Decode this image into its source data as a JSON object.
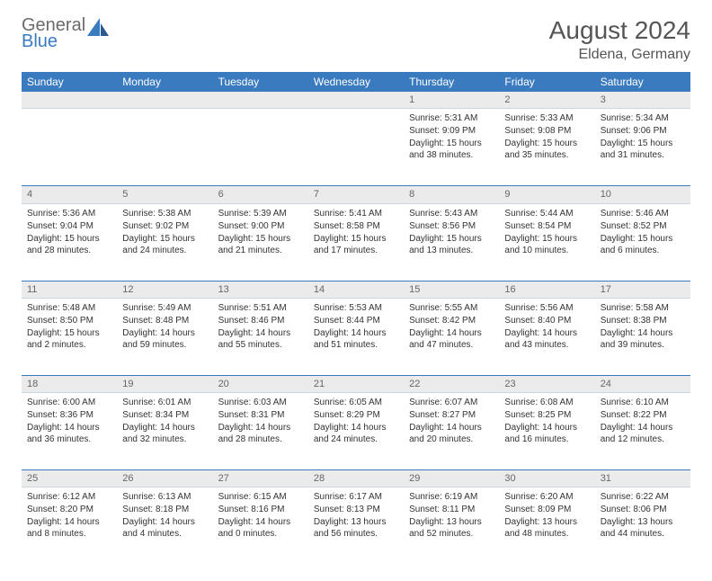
{
  "logo": {
    "line1": "General",
    "line2": "Blue"
  },
  "title": "August 2024",
  "location": "Eldena, Germany",
  "colors": {
    "header_bg": "#3a7bbf",
    "header_text": "#ffffff",
    "daynum_bg": "#ebebeb",
    "daynum_text": "#666666",
    "body_text": "#333333",
    "rule": "#3a7bbf"
  },
  "day_headers": [
    "Sunday",
    "Monday",
    "Tuesday",
    "Wednesday",
    "Thursday",
    "Friday",
    "Saturday"
  ],
  "weeks": [
    [
      null,
      null,
      null,
      null,
      {
        "n": "1",
        "sr": "5:31 AM",
        "ss": "9:09 PM",
        "dl": "15 hours and 38 minutes."
      },
      {
        "n": "2",
        "sr": "5:33 AM",
        "ss": "9:08 PM",
        "dl": "15 hours and 35 minutes."
      },
      {
        "n": "3",
        "sr": "5:34 AM",
        "ss": "9:06 PM",
        "dl": "15 hours and 31 minutes."
      }
    ],
    [
      {
        "n": "4",
        "sr": "5:36 AM",
        "ss": "9:04 PM",
        "dl": "15 hours and 28 minutes."
      },
      {
        "n": "5",
        "sr": "5:38 AM",
        "ss": "9:02 PM",
        "dl": "15 hours and 24 minutes."
      },
      {
        "n": "6",
        "sr": "5:39 AM",
        "ss": "9:00 PM",
        "dl": "15 hours and 21 minutes."
      },
      {
        "n": "7",
        "sr": "5:41 AM",
        "ss": "8:58 PM",
        "dl": "15 hours and 17 minutes."
      },
      {
        "n": "8",
        "sr": "5:43 AM",
        "ss": "8:56 PM",
        "dl": "15 hours and 13 minutes."
      },
      {
        "n": "9",
        "sr": "5:44 AM",
        "ss": "8:54 PM",
        "dl": "15 hours and 10 minutes."
      },
      {
        "n": "10",
        "sr": "5:46 AM",
        "ss": "8:52 PM",
        "dl": "15 hours and 6 minutes."
      }
    ],
    [
      {
        "n": "11",
        "sr": "5:48 AM",
        "ss": "8:50 PM",
        "dl": "15 hours and 2 minutes."
      },
      {
        "n": "12",
        "sr": "5:49 AM",
        "ss": "8:48 PM",
        "dl": "14 hours and 59 minutes."
      },
      {
        "n": "13",
        "sr": "5:51 AM",
        "ss": "8:46 PM",
        "dl": "14 hours and 55 minutes."
      },
      {
        "n": "14",
        "sr": "5:53 AM",
        "ss": "8:44 PM",
        "dl": "14 hours and 51 minutes."
      },
      {
        "n": "15",
        "sr": "5:55 AM",
        "ss": "8:42 PM",
        "dl": "14 hours and 47 minutes."
      },
      {
        "n": "16",
        "sr": "5:56 AM",
        "ss": "8:40 PM",
        "dl": "14 hours and 43 minutes."
      },
      {
        "n": "17",
        "sr": "5:58 AM",
        "ss": "8:38 PM",
        "dl": "14 hours and 39 minutes."
      }
    ],
    [
      {
        "n": "18",
        "sr": "6:00 AM",
        "ss": "8:36 PM",
        "dl": "14 hours and 36 minutes."
      },
      {
        "n": "19",
        "sr": "6:01 AM",
        "ss": "8:34 PM",
        "dl": "14 hours and 32 minutes."
      },
      {
        "n": "20",
        "sr": "6:03 AM",
        "ss": "8:31 PM",
        "dl": "14 hours and 28 minutes."
      },
      {
        "n": "21",
        "sr": "6:05 AM",
        "ss": "8:29 PM",
        "dl": "14 hours and 24 minutes."
      },
      {
        "n": "22",
        "sr": "6:07 AM",
        "ss": "8:27 PM",
        "dl": "14 hours and 20 minutes."
      },
      {
        "n": "23",
        "sr": "6:08 AM",
        "ss": "8:25 PM",
        "dl": "14 hours and 16 minutes."
      },
      {
        "n": "24",
        "sr": "6:10 AM",
        "ss": "8:22 PM",
        "dl": "14 hours and 12 minutes."
      }
    ],
    [
      {
        "n": "25",
        "sr": "6:12 AM",
        "ss": "8:20 PM",
        "dl": "14 hours and 8 minutes."
      },
      {
        "n": "26",
        "sr": "6:13 AM",
        "ss": "8:18 PM",
        "dl": "14 hours and 4 minutes."
      },
      {
        "n": "27",
        "sr": "6:15 AM",
        "ss": "8:16 PM",
        "dl": "14 hours and 0 minutes."
      },
      {
        "n": "28",
        "sr": "6:17 AM",
        "ss": "8:13 PM",
        "dl": "13 hours and 56 minutes."
      },
      {
        "n": "29",
        "sr": "6:19 AM",
        "ss": "8:11 PM",
        "dl": "13 hours and 52 minutes."
      },
      {
        "n": "30",
        "sr": "6:20 AM",
        "ss": "8:09 PM",
        "dl": "13 hours and 48 minutes."
      },
      {
        "n": "31",
        "sr": "6:22 AM",
        "ss": "8:06 PM",
        "dl": "13 hours and 44 minutes."
      }
    ]
  ],
  "labels": {
    "sunrise": "Sunrise:",
    "sunset": "Sunset:",
    "daylight": "Daylight:"
  }
}
